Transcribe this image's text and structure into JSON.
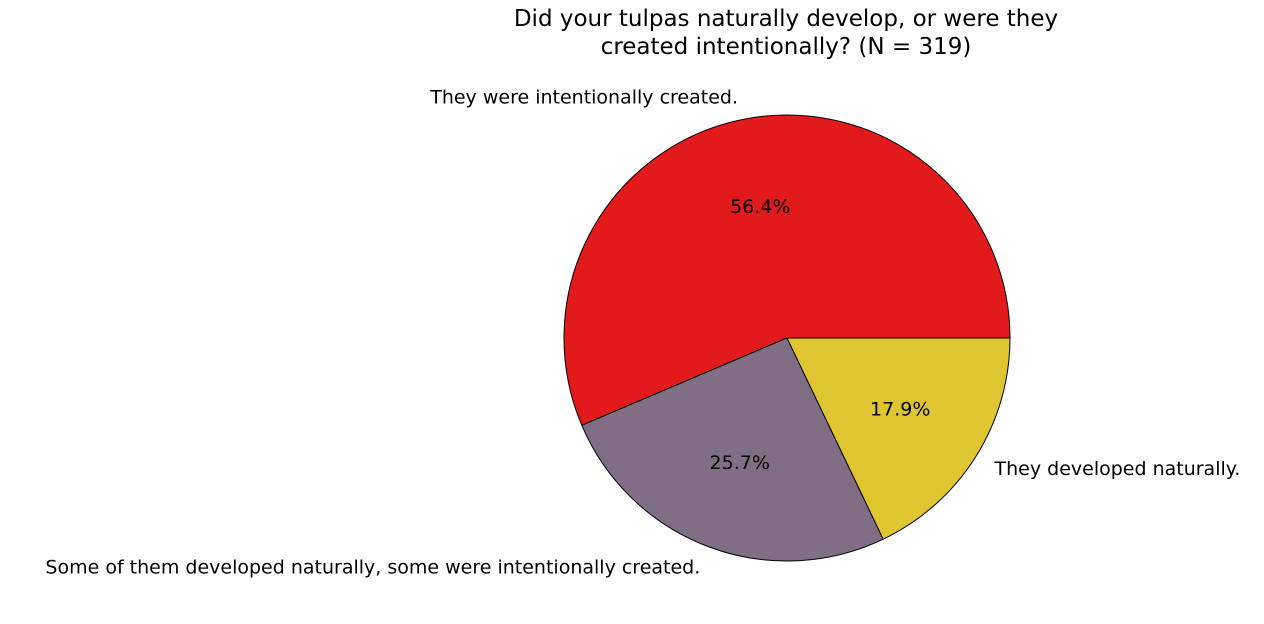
{
  "chart_data": {
    "type": "pie",
    "title_lines": [
      "Did your tulpas naturally develop, or were they",
      "created intentionally? (N = 319)"
    ],
    "start_angle_deg": 0,
    "direction": "counterclockwise",
    "slices": [
      {
        "label": "They were intentionally created.",
        "value": 56.4,
        "pct_label": "56.4%",
        "color": "#e31a1c"
      },
      {
        "label": "Some of them developed naturally, some were intentionally created.",
        "value": 25.7,
        "pct_label": "25.7%",
        "color": "#7f6e84"
      },
      {
        "label": "They developed naturally.",
        "value": 17.9,
        "pct_label": "17.9%",
        "color": "#dfc52f"
      }
    ],
    "edge_color": "#000000"
  }
}
